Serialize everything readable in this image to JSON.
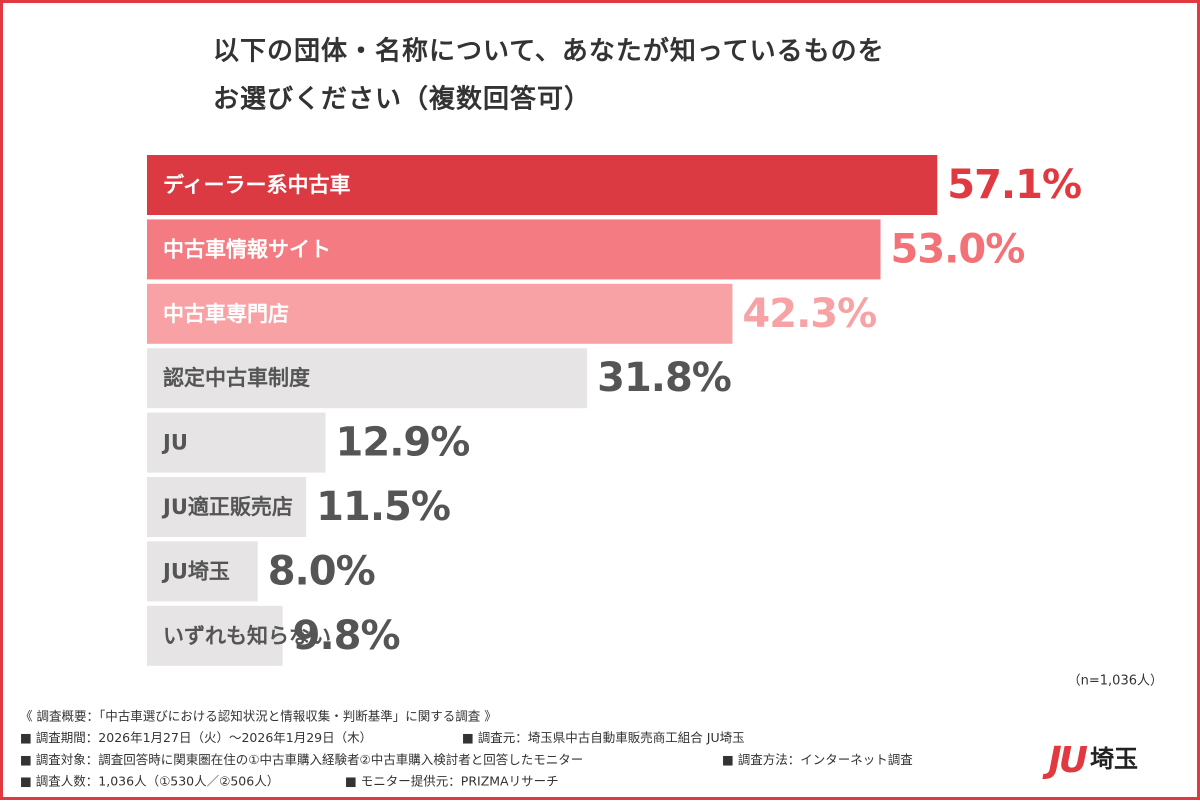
{
  "chart_data": {
    "type": "bar",
    "orientation": "horizontal",
    "title_lines": [
      "以下の団体・名称について、あなたが知っているものを",
      "お選びください（複数回答可）"
    ],
    "categories": [
      "ディーラー系中古車",
      "中古車情報サイト",
      "中古車専門店",
      "認定中古車制度",
      "JU",
      "JU適正販売店",
      "JU埼玉",
      "いずれも知らない"
    ],
    "values": [
      57.1,
      53.0,
      42.3,
      31.8,
      12.9,
      11.5,
      8.0,
      9.8
    ],
    "value_labels": [
      "57.1%",
      "53.0%",
      "42.3%",
      "31.8%",
      "12.9%",
      "11.5%",
      "8.0%",
      "9.8%"
    ],
    "colors": [
      "#db3a42",
      "#f47b81",
      "#f9a2a6",
      "#e6e4e4",
      "#e6e4e4",
      "#e6e4e4",
      "#e6e4e4",
      "#e6e4e4"
    ],
    "value_label_colors": [
      "#e0393f",
      "#f27278",
      "#f7a3a6",
      "#555555",
      "#555555",
      "#555555",
      "#555555",
      "#555555"
    ],
    "category_label_colors": [
      "#ffffff",
      "#ffffff",
      "#ffffff",
      "#555555",
      "#555555",
      "#555555",
      "#555555",
      "#555555"
    ],
    "sample_note": "（n=1,036人）"
  },
  "footer": {
    "lines": [
      [
        "《 調査概要：「中古車選びにおける認知状況と情報収集・判断基準」に関する調査 》"
      ],
      [
        "■ 調査期間：2026年1月27日（火）〜2026年1月29日（木）",
        "■ 調査元：埼玉県中古自動車販売商工組合 JU埼玉"
      ],
      [
        "■ 調査対象：調査回答時に関東圏在住の①中古車購入経験者②中古車購入検討者と回答したモニター",
        "■ 調査方法：インターネット調査"
      ],
      [
        "■ 調査人数：1,036人（①530人／②506人）",
        "■ モニター提供元：PRIZMAリサーチ"
      ]
    ]
  },
  "logo": {
    "mark": "JU",
    "text": "埼玉"
  }
}
